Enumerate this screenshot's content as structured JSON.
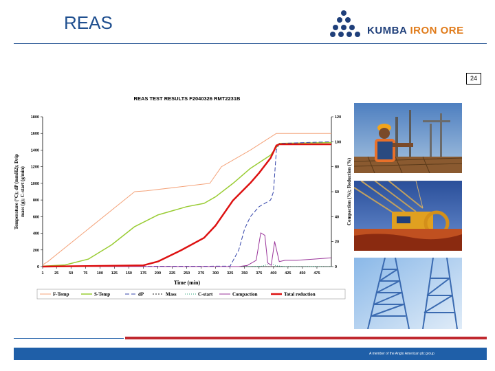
{
  "slide": {
    "title": "REAS",
    "page_number": "24",
    "logo_text_left": "KUMBA",
    "logo_text_right": "IRON ORE",
    "footer": "A member of the Anglo American plc group"
  },
  "colors": {
    "brand_blue": "#1f5fa8",
    "brand_red": "#c0282e",
    "logo_orange": "#e07b1a"
  },
  "photos": [
    {
      "icon": "worker-with-hard-hat-photo"
    },
    {
      "icon": "reclaimer-machine-photo"
    },
    {
      "icon": "steel-tower-photo"
    }
  ],
  "chart_data": {
    "type": "line",
    "title": "REAS TEST RESULTS F2040326 RMT2231B",
    "xlabel": "Time (min)",
    "ylabel_left": "Temperature (°C); dP (mmH2); Drip mass (g); C-start (g/min)",
    "ylabel_right": "Compaction (%); Reduction (%)",
    "xlim": [
      1,
      500
    ],
    "ylim_left": [
      0,
      1800
    ],
    "ylim_right": [
      0,
      120
    ],
    "x_ticks": [
      "1",
      "25",
      "50",
      "75",
      "100",
      "125",
      "150",
      "175",
      "200",
      "225",
      "250",
      "275",
      "300",
      "325",
      "350",
      "375",
      "400",
      "425",
      "450",
      "475"
    ],
    "y_ticks_left": [
      "0",
      "200",
      "400",
      "600",
      "800",
      "1000",
      "1200",
      "1400",
      "1600",
      "1800"
    ],
    "y_ticks_right": [
      "0",
      "20",
      "40",
      "60",
      "80",
      "100",
      "120"
    ],
    "legend_position": "bottom",
    "series": [
      {
        "name": "F-Temp",
        "axis": "left",
        "color": "#f4a37a",
        "width": 1,
        "points": [
          [
            1,
            20
          ],
          [
            10,
            60
          ],
          [
            160,
            900
          ],
          [
            180,
            910
          ],
          [
            290,
            1000
          ],
          [
            310,
            1200
          ],
          [
            360,
            1400
          ],
          [
            405,
            1600
          ],
          [
            500,
            1600
          ]
        ]
      },
      {
        "name": "S-Temp",
        "axis": "left",
        "color": "#99cc33",
        "width": 1.5,
        "points": [
          [
            1,
            5
          ],
          [
            40,
            20
          ],
          [
            80,
            90
          ],
          [
            120,
            260
          ],
          [
            160,
            480
          ],
          [
            200,
            620
          ],
          [
            250,
            720
          ],
          [
            280,
            760
          ],
          [
            300,
            840
          ],
          [
            330,
            1000
          ],
          [
            360,
            1180
          ],
          [
            395,
            1340
          ],
          [
            410,
            1480
          ],
          [
            500,
            1490
          ]
        ]
      },
      {
        "name": "dP",
        "axis": "left",
        "color": "#3344aa",
        "width": 1,
        "dash": "6 3",
        "points": [
          [
            1,
            2
          ],
          [
            325,
            5
          ],
          [
            340,
            200
          ],
          [
            350,
            450
          ],
          [
            360,
            600
          ],
          [
            375,
            720
          ],
          [
            395,
            800
          ],
          [
            400,
            900
          ],
          [
            405,
            1400
          ],
          [
            410,
            1480
          ],
          [
            500,
            1500
          ]
        ]
      },
      {
        "name": "Mass",
        "axis": "left",
        "color": "#222222",
        "width": 1,
        "dash": "2 2",
        "points": [
          [
            1,
            0
          ],
          [
            500,
            0
          ]
        ]
      },
      {
        "name": "C-start",
        "axis": "left",
        "color": "#2aa37a",
        "width": 1,
        "dash": "1 2",
        "points": [
          [
            1,
            0
          ],
          [
            350,
            0
          ],
          [
            380,
            5
          ],
          [
            395,
            35
          ],
          [
            405,
            10
          ],
          [
            420,
            0
          ],
          [
            500,
            0
          ]
        ]
      },
      {
        "name": "Compaction",
        "axis": "right",
        "color": "#993399",
        "width": 1,
        "points": [
          [
            1,
            0
          ],
          [
            340,
            0
          ],
          [
            355,
            1
          ],
          [
            370,
            5
          ],
          [
            378,
            27
          ],
          [
            385,
            25
          ],
          [
            390,
            3
          ],
          [
            396,
            1
          ],
          [
            402,
            20
          ],
          [
            410,
            4
          ],
          [
            420,
            5
          ],
          [
            440,
            5
          ],
          [
            470,
            6
          ],
          [
            500,
            7
          ]
        ]
      },
      {
        "name": "Total reduction",
        "axis": "right",
        "color": "#dd1111",
        "width": 2.5,
        "points": [
          [
            1,
            0
          ],
          [
            175,
            1
          ],
          [
            200,
            4
          ],
          [
            240,
            13
          ],
          [
            280,
            23
          ],
          [
            300,
            33
          ],
          [
            330,
            53
          ],
          [
            360,
            67
          ],
          [
            375,
            75
          ],
          [
            395,
            87
          ],
          [
            405,
            97
          ],
          [
            410,
            98
          ],
          [
            500,
            98
          ]
        ]
      }
    ]
  }
}
